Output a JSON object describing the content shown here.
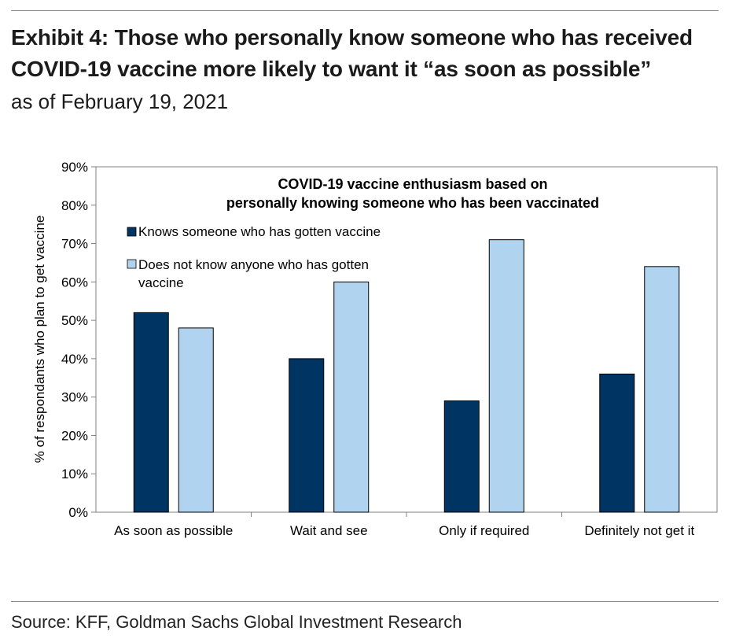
{
  "header": {
    "title_line1": "Exhibit 4: Those who personally know someone who has received",
    "title_line2": "COVID-19 vaccine more likely to want it “as soon as possible”",
    "subtitle": "as of February 19, 2021"
  },
  "footer": {
    "source": "Source: KFF, Goldman Sachs Global Investment Research"
  },
  "chart_data": {
    "type": "bar",
    "title_line1": "COVID-19 vaccine enthusiasm based on",
    "title_line2": "personally knowing someone who has been vaccinated",
    "categories": [
      "As soon as possible",
      "Wait and see",
      "Only if required",
      "Definitely not get it"
    ],
    "series": [
      {
        "name": "Knows someone who has gotten vaccine",
        "color": "#003462",
        "values": [
          0.52,
          0.4,
          0.29,
          0.36
        ]
      },
      {
        "name_line1": "Does not know anyone who has gotten",
        "name_line2": "vaccine",
        "color": "#b0d4ef",
        "values": [
          0.48,
          0.6,
          0.71,
          0.64
        ]
      }
    ],
    "ylabel": "% of respondants who plan to get vaccine",
    "ylim": [
      0,
      0.9
    ],
    "yticks": [
      "0%",
      "10%",
      "20%",
      "30%",
      "40%",
      "50%",
      "60%",
      "70%",
      "80%",
      "90%"
    ],
    "legend_position": "top-left",
    "grid": false
  }
}
